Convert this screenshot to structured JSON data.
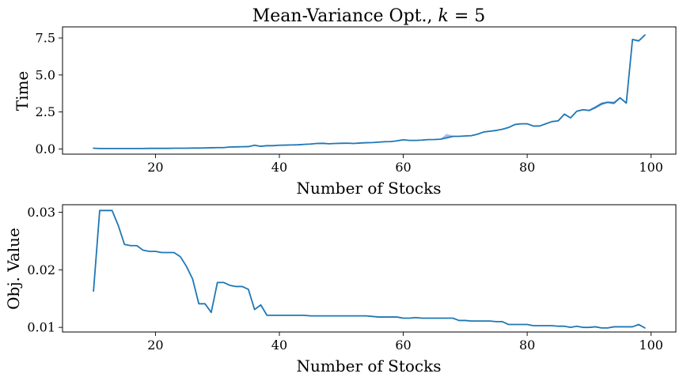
{
  "chart_data": [
    {
      "type": "line",
      "title": "Mean-Variance Opt., k = 5",
      "title_parts": {
        "prefix": "Mean-Variance Opt., ",
        "var": "k",
        "suffix": " = 5"
      },
      "xlabel": "Number of Stocks",
      "ylabel": "Time",
      "xlim": [
        5,
        104
      ],
      "ylim": [
        -0.35,
        8.25
      ],
      "xticks": [
        20,
        40,
        60,
        80,
        100
      ],
      "xtick_labels": [
        "20",
        "40",
        "60",
        "80",
        "100"
      ],
      "yticks": [
        0.0,
        2.5,
        5.0,
        7.5
      ],
      "ytick_labels": [
        "0.0",
        "2.5",
        "5.0",
        "7.5"
      ],
      "grid": false,
      "line_color": "#1f77b4",
      "band_color": "#4169e1",
      "x": [
        10,
        11,
        12,
        13,
        14,
        15,
        16,
        17,
        18,
        19,
        20,
        21,
        22,
        23,
        24,
        25,
        26,
        27,
        28,
        29,
        30,
        31,
        32,
        33,
        34,
        35,
        36,
        37,
        38,
        39,
        40,
        41,
        42,
        43,
        44,
        45,
        46,
        47,
        48,
        49,
        50,
        51,
        52,
        53,
        54,
        55,
        56,
        57,
        58,
        59,
        60,
        61,
        62,
        63,
        64,
        65,
        66,
        67,
        68,
        69,
        70,
        71,
        72,
        73,
        74,
        75,
        76,
        77,
        78,
        79,
        80,
        81,
        82,
        83,
        84,
        85,
        86,
        87,
        88,
        89,
        90,
        91,
        92,
        93,
        94,
        95,
        96,
        97,
        98,
        99
      ],
      "y": [
        0.05,
        0.03,
        0.03,
        0.03,
        0.03,
        0.03,
        0.03,
        0.03,
        0.03,
        0.04,
        0.04,
        0.04,
        0.04,
        0.05,
        0.05,
        0.05,
        0.06,
        0.06,
        0.07,
        0.08,
        0.09,
        0.09,
        0.13,
        0.14,
        0.15,
        0.16,
        0.25,
        0.18,
        0.22,
        0.22,
        0.25,
        0.26,
        0.27,
        0.28,
        0.31,
        0.33,
        0.37,
        0.38,
        0.35,
        0.37,
        0.38,
        0.39,
        0.37,
        0.4,
        0.42,
        0.43,
        0.46,
        0.49,
        0.5,
        0.55,
        0.62,
        0.58,
        0.58,
        0.6,
        0.63,
        0.64,
        0.66,
        0.75,
        0.85,
        0.85,
        0.88,
        0.9,
        1.0,
        1.15,
        1.2,
        1.25,
        1.33,
        1.45,
        1.65,
        1.7,
        1.7,
        1.55,
        1.55,
        1.7,
        1.85,
        1.9,
        2.35,
        2.1,
        2.55,
        2.65,
        2.6,
        2.8,
        3.05,
        3.15,
        3.1,
        3.45,
        3.1,
        7.4,
        7.3,
        7.7
      ],
      "band_low": [
        0.05,
        0.03,
        0.03,
        0.03,
        0.03,
        0.03,
        0.03,
        0.03,
        0.03,
        0.04,
        0.04,
        0.04,
        0.04,
        0.05,
        0.05,
        0.05,
        0.06,
        0.06,
        0.07,
        0.08,
        0.09,
        0.09,
        0.13,
        0.14,
        0.15,
        0.16,
        0.22,
        0.18,
        0.22,
        0.22,
        0.25,
        0.26,
        0.27,
        0.28,
        0.31,
        0.33,
        0.36,
        0.37,
        0.35,
        0.37,
        0.38,
        0.39,
        0.37,
        0.4,
        0.42,
        0.43,
        0.46,
        0.48,
        0.5,
        0.55,
        0.6,
        0.58,
        0.58,
        0.6,
        0.62,
        0.63,
        0.65,
        0.7,
        0.8,
        0.84,
        0.87,
        0.9,
        1.0,
        1.13,
        1.18,
        1.25,
        1.32,
        1.43,
        1.62,
        1.7,
        1.68,
        1.53,
        1.55,
        1.68,
        1.83,
        1.9,
        2.3,
        2.08,
        2.52,
        2.62,
        2.55,
        2.72,
        2.95,
        3.1,
        3.0,
        3.4,
        3.05,
        7.35,
        7.25,
        7.65
      ],
      "band_high": [
        0.06,
        0.03,
        0.03,
        0.03,
        0.03,
        0.03,
        0.03,
        0.03,
        0.03,
        0.04,
        0.04,
        0.04,
        0.04,
        0.05,
        0.05,
        0.05,
        0.06,
        0.06,
        0.07,
        0.08,
        0.09,
        0.09,
        0.13,
        0.14,
        0.15,
        0.16,
        0.28,
        0.19,
        0.23,
        0.23,
        0.26,
        0.27,
        0.28,
        0.29,
        0.32,
        0.34,
        0.38,
        0.4,
        0.36,
        0.38,
        0.39,
        0.4,
        0.38,
        0.41,
        0.43,
        0.44,
        0.47,
        0.5,
        0.51,
        0.57,
        0.64,
        0.59,
        0.59,
        0.61,
        0.64,
        0.65,
        0.68,
        1.02,
        0.9,
        0.87,
        0.9,
        0.92,
        1.02,
        1.17,
        1.23,
        1.27,
        1.35,
        1.48,
        1.68,
        1.72,
        1.73,
        1.58,
        1.58,
        1.73,
        1.88,
        1.93,
        2.4,
        2.14,
        2.6,
        2.7,
        2.66,
        2.9,
        3.15,
        3.22,
        3.2,
        3.52,
        3.16,
        7.45,
        7.36,
        7.76
      ]
    },
    {
      "type": "line",
      "xlabel": "Number of Stocks",
      "ylabel": "Obj. Value",
      "xlim": [
        5,
        104
      ],
      "ylim": [
        0.0092,
        0.0313
      ],
      "xticks": [
        20,
        40,
        60,
        80,
        100
      ],
      "xtick_labels": [
        "20",
        "40",
        "60",
        "80",
        "100"
      ],
      "yticks": [
        0.01,
        0.02,
        0.03
      ],
      "ytick_labels": [
        "0.01",
        "0.02",
        "0.03"
      ],
      "grid": false,
      "line_color": "#1f77b4",
      "x": [
        10,
        11,
        12,
        13,
        14,
        15,
        16,
        17,
        18,
        19,
        20,
        21,
        22,
        23,
        24,
        25,
        26,
        27,
        28,
        29,
        30,
        31,
        32,
        33,
        34,
        35,
        36,
        37,
        38,
        39,
        40,
        41,
        42,
        43,
        44,
        45,
        46,
        47,
        48,
        49,
        50,
        51,
        52,
        53,
        54,
        55,
        56,
        57,
        58,
        59,
        60,
        61,
        62,
        63,
        64,
        65,
        66,
        67,
        68,
        69,
        70,
        71,
        72,
        73,
        74,
        75,
        76,
        77,
        78,
        79,
        80,
        81,
        82,
        83,
        84,
        85,
        86,
        87,
        88,
        89,
        90,
        91,
        92,
        93,
        94,
        95,
        96,
        97,
        98,
        99
      ],
      "y": [
        0.0163,
        0.0303,
        0.0303,
        0.0303,
        0.0277,
        0.0244,
        0.0242,
        0.0242,
        0.0234,
        0.0232,
        0.0232,
        0.023,
        0.023,
        0.023,
        0.0223,
        0.0206,
        0.0184,
        0.0141,
        0.0141,
        0.0126,
        0.0178,
        0.0178,
        0.0173,
        0.0171,
        0.0171,
        0.0166,
        0.0131,
        0.0139,
        0.0121,
        0.0121,
        0.0121,
        0.0121,
        0.0121,
        0.0121,
        0.0121,
        0.012,
        0.012,
        0.012,
        0.012,
        0.012,
        0.012,
        0.012,
        0.012,
        0.012,
        0.012,
        0.0119,
        0.0118,
        0.0118,
        0.0118,
        0.0118,
        0.0116,
        0.0116,
        0.0117,
        0.0116,
        0.0116,
        0.0116,
        0.0116,
        0.0116,
        0.0116,
        0.0112,
        0.0112,
        0.0111,
        0.0111,
        0.0111,
        0.0111,
        0.011,
        0.011,
        0.0105,
        0.0105,
        0.0105,
        0.0105,
        0.0103,
        0.0103,
        0.0103,
        0.0103,
        0.0102,
        0.0102,
        0.01,
        0.0102,
        0.01,
        0.01,
        0.0101,
        0.0099,
        0.0099,
        0.0101,
        0.0101,
        0.0101,
        0.0101,
        0.0105,
        0.0099
      ]
    }
  ]
}
